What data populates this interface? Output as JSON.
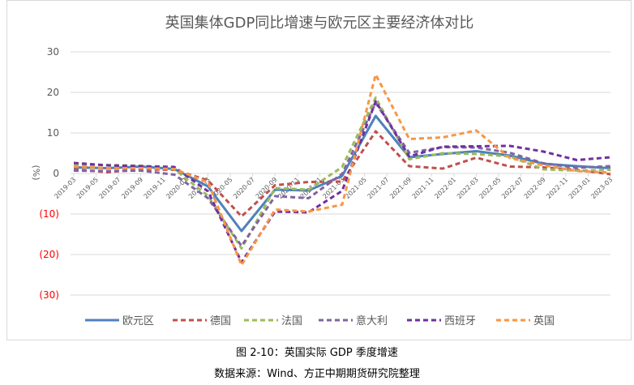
{
  "chart_data": {
    "type": "line",
    "title": "英国集体GDP同比增速与欧元区主要经济体对比",
    "ylabel": "(%)",
    "ylim": [
      -30,
      30
    ],
    "yticks": [
      {
        "v": 30,
        "label": "30"
      },
      {
        "v": 20,
        "label": "20"
      },
      {
        "v": 10,
        "label": "10"
      },
      {
        "v": 0,
        "label": "0"
      },
      {
        "v": -10,
        "label": "(10)"
      },
      {
        "v": -20,
        "label": "(20)"
      },
      {
        "v": -30,
        "label": "(30)"
      }
    ],
    "xtick_labels": [
      "2019-03",
      "2019-05",
      "2019-07",
      "2019-09",
      "2019-11",
      "2020-01",
      "2020-03",
      "2020-05",
      "2020-07",
      "2020-09",
      "2020-11",
      "2021-01",
      "2021-03",
      "2021-05",
      "2021-07",
      "2021-09",
      "2021-11",
      "2022-01",
      "2022-03",
      "2022-05",
      "2022-07",
      "2022-09",
      "2022-11",
      "2023-01",
      "2023-03"
    ],
    "x": [
      "2019-03",
      "2019-06",
      "2019-09",
      "2019-12",
      "2020-03",
      "2020-06",
      "2020-09",
      "2020-12",
      "2021-03",
      "2021-06",
      "2021-09",
      "2021-12",
      "2022-03",
      "2022-06",
      "2022-09",
      "2022-12",
      "2023-03"
    ],
    "series": [
      {
        "name": "欧元区",
        "color": "#4f81bd",
        "dash": false,
        "values": [
          1.5,
          1.3,
          1.7,
          1.1,
          -3.2,
          -14.2,
          -4.0,
          -4.2,
          -0.6,
          14.2,
          4.0,
          4.8,
          5.5,
          4.4,
          2.4,
          1.8,
          1.3
        ]
      },
      {
        "name": "德国",
        "color": "#c0504d",
        "dash": true,
        "values": [
          1.0,
          0.3,
          1.0,
          0.9,
          -1.7,
          -10.6,
          -2.9,
          -2.1,
          -2.0,
          10.4,
          1.8,
          1.2,
          3.9,
          1.7,
          1.5,
          0.9,
          -0.2
        ]
      },
      {
        "name": "法国",
        "color": "#9bbb59",
        "dash": true,
        "values": [
          2.0,
          2.1,
          1.9,
          1.0,
          -5.5,
          -18.5,
          -3.6,
          -4.0,
          1.6,
          18.7,
          3.5,
          5.0,
          4.8,
          4.2,
          1.0,
          0.7,
          0.9
        ]
      },
      {
        "name": "意大利",
        "color": "#8064a2",
        "dash": true,
        "values": [
          0.7,
          0.6,
          0.7,
          -0.3,
          -6.1,
          -17.9,
          -5.6,
          -6.1,
          -0.1,
          17.4,
          5.1,
          6.5,
          6.4,
          5.1,
          2.5,
          1.4,
          1.8
        ]
      },
      {
        "name": "西班牙",
        "color": "#7030a0",
        "dash": true,
        "values": [
          2.6,
          2.0,
          1.8,
          1.6,
          -4.4,
          -21.9,
          -9.4,
          -9.6,
          -4.3,
          17.8,
          4.2,
          6.6,
          6.7,
          6.8,
          5.4,
          3.3,
          4.0
        ]
      },
      {
        "name": "英国",
        "color": "#f79646",
        "dash": true,
        "values": [
          1.7,
          1.3,
          1.3,
          1.1,
          -2.2,
          -22.6,
          -8.9,
          -9.4,
          -7.7,
          24.4,
          8.5,
          8.9,
          10.6,
          3.8,
          2.0,
          0.6,
          0.2
        ]
      }
    ],
    "legend": "bottom",
    "grid": true
  },
  "caption": "图 2-10：英国实际 GDP 季度增速",
  "source": "数据来源：Wind、方正中期期货研究院整理"
}
